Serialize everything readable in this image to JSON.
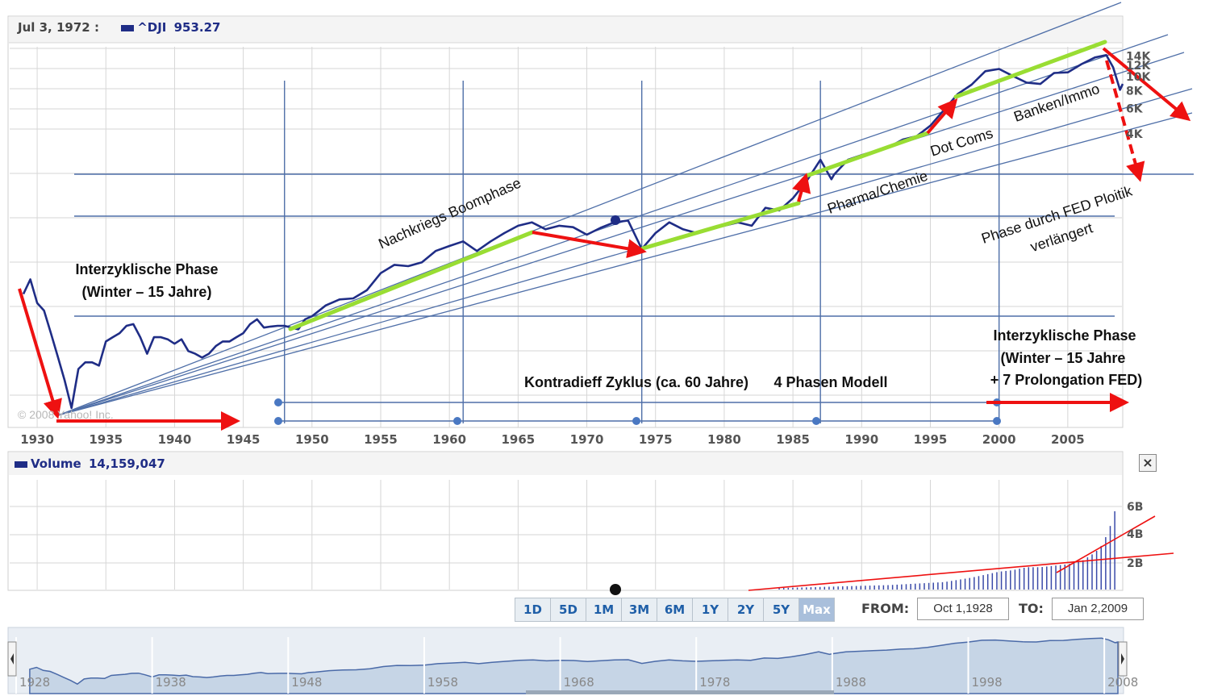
{
  "header": {
    "date_label": "Jul 3, 1972 :",
    "ticker": "^DJI",
    "value": "953.27"
  },
  "volume_header": {
    "label": "Volume",
    "value": "14,159,047"
  },
  "copyright": "© 2008 Yahoo! Inc.",
  "x_ticks": [
    "1930",
    "1935",
    "1940",
    "1945",
    "1950",
    "1955",
    "1960",
    "1965",
    "1970",
    "1975",
    "1980",
    "1985",
    "1990",
    "1995",
    "2000",
    "2005"
  ],
  "y_ticks_right": [
    "14K",
    "12K",
    "10K",
    "8K",
    "6K",
    "4K"
  ],
  "volume_ticks": [
    "6B",
    "4B",
    "2B"
  ],
  "range_buttons": [
    "1D",
    "5D",
    "1M",
    "3M",
    "6M",
    "1Y",
    "2Y",
    "5Y",
    "Max"
  ],
  "active_range": "Max",
  "from_label": "FROM:",
  "from_value": "Oct 1,1928",
  "to_label": "TO:",
  "to_value": "Jan 2,2009",
  "close_label": "×",
  "navigator_years": [
    "1928",
    "1938",
    "1948",
    "1958",
    "1968",
    "1978",
    "1988",
    "1998",
    "2008"
  ],
  "annotations": {
    "interzyklisch_left_1": "Interzyklische Phase",
    "interzyklisch_left_2": "(Winter – 15 Jahre)",
    "nachkriegs": "Nachkriegs Boomphase",
    "pharma": "Pharma/Chemie",
    "dotcoms": "Dot Coms",
    "banken": "Banken/Immo",
    "fed_1": "Phase durch FED Ploitik",
    "fed_2": "verlängert",
    "kondratieff": "Kontradieff Zyklus (ca. 60 Jahre)",
    "phasen": "4 Phasen Modell",
    "interzyklisch_right_1": "Interzyklische Phase",
    "interzyklisch_right_2": "(Winter – 15 Jahre",
    "interzyklisch_right_3": "+ 7 Prolongation FED)"
  },
  "colors": {
    "line": "#1f2d86",
    "annotation": "#ee1111",
    "trend": "#99dd33",
    "grid": "#d6d6d6",
    "guide": "#4f6fa8",
    "volume": "#3a4aa8"
  },
  "chart_data": {
    "type": "line",
    "title": "",
    "xlabel": "",
    "ylabel": "",
    "y_scale": "log",
    "xlim": [
      1928,
      2009
    ],
    "series": [
      {
        "name": "^DJI",
        "x": [
          1929.0,
          1929.5,
          1930.0,
          1930.5,
          1931.0,
          1931.5,
          1932.0,
          1932.5,
          1933.0,
          1933.5,
          1934.0,
          1934.5,
          1935.0,
          1935.5,
          1936.0,
          1936.5,
          1937.0,
          1937.5,
          1938.0,
          1938.5,
          1939.0,
          1939.5,
          1940.0,
          1940.5,
          1941.0,
          1941.5,
          1942.0,
          1942.5,
          1943.0,
          1943.5,
          1944.0,
          1944.5,
          1945.0,
          1945.5,
          1946.0,
          1946.5,
          1947.0,
          1947.5,
          1948.0,
          1948.5,
          1949.0,
          1949.5,
          1950.0,
          1951.0,
          1952.0,
          1953.0,
          1954.0,
          1955.0,
          1956.0,
          1957.0,
          1958.0,
          1959.0,
          1960.0,
          1961.0,
          1962.0,
          1963.0,
          1964.0,
          1965.0,
          1966.0,
          1967.0,
          1968.0,
          1969.0,
          1970.0,
          1971.0,
          1972.0,
          1973.0,
          1974.0,
          1975.0,
          1976.0,
          1977.0,
          1978.0,
          1979.0,
          1980.0,
          1981.0,
          1982.0,
          1983.0,
          1984.0,
          1985.0,
          1986.0,
          1987.0,
          1987.8,
          1988.0,
          1989.0,
          1990.0,
          1991.0,
          1992.0,
          1993.0,
          1994.0,
          1995.0,
          1996.0,
          1997.0,
          1998.0,
          1999.0,
          2000.0,
          2001.0,
          2002.0,
          2003.0,
          2004.0,
          2005.0,
          2006.0,
          2007.0,
          2007.8,
          2008.3,
          2008.8,
          2009.0
        ],
        "values": [
          300,
          380,
          260,
          230,
          160,
          110,
          75,
          48,
          90,
          100,
          100,
          95,
          140,
          150,
          160,
          180,
          185,
          150,
          115,
          150,
          150,
          145,
          135,
          145,
          120,
          115,
          108,
          115,
          130,
          140,
          140,
          150,
          160,
          185,
          200,
          175,
          178,
          180,
          180,
          175,
          170,
          200,
          210,
          250,
          275,
          280,
          320,
          420,
          480,
          470,
          500,
          600,
          650,
          700,
          600,
          700,
          800,
          900,
          950,
          850,
          900,
          880,
          780,
          870,
          950,
          980,
          620,
          800,
          950,
          850,
          800,
          850,
          900,
          950,
          900,
          1200,
          1150,
          1400,
          1850,
          2600,
          1900,
          2050,
          2600,
          2800,
          3000,
          3200,
          3600,
          3800,
          4500,
          5800,
          7500,
          8700,
          10800,
          11200,
          10000,
          9000,
          8800,
          10500,
          10600,
          12100,
          13500,
          14000,
          11500,
          8000,
          8800
        ]
      }
    ],
    "volume_series": {
      "name": "Volume",
      "x": [
        1984,
        1986,
        1988,
        1990,
        1992,
        1994,
        1996,
        1998,
        1999,
        2000,
        2001,
        2002,
        2003,
        2004,
        2005,
        2006,
        2007,
        2007.5,
        2008,
        2008.5,
        2009
      ],
      "values": [
        0.1,
        0.15,
        0.2,
        0.25,
        0.3,
        0.4,
        0.5,
        0.8,
        1.0,
        1.2,
        1.3,
        1.5,
        1.5,
        1.6,
        1.7,
        1.9,
        2.5,
        3.0,
        4.0,
        5.5,
        6.2
      ],
      "unit": "B"
    }
  }
}
